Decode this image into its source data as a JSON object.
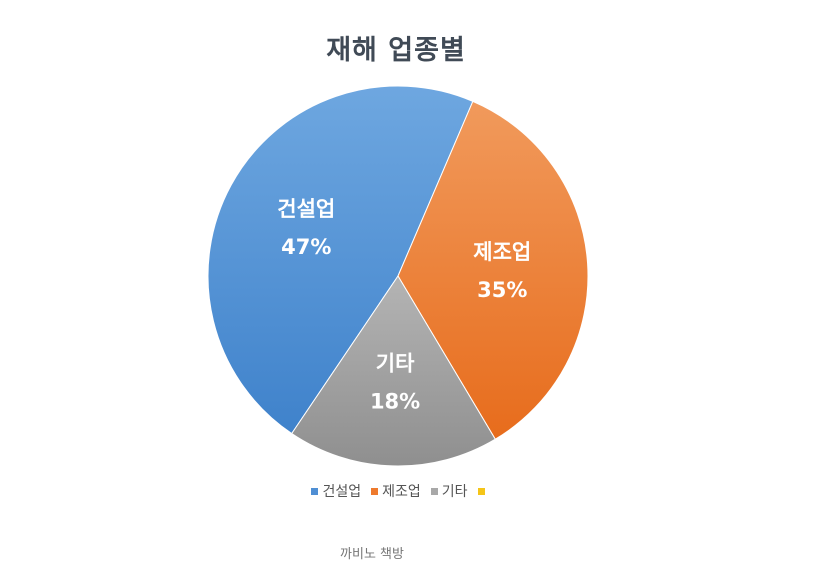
{
  "chart_data": {
    "type": "pie",
    "title": "재해 업종별",
    "categories": [
      "건설업",
      "제조업",
      "기타",
      ""
    ],
    "values": [
      47,
      35,
      18,
      0
    ],
    "value_labels": [
      "47%",
      "35%",
      "18%",
      ""
    ],
    "colors": [
      "#4f8fd4",
      "#ee7a2d",
      "#a8a8a8",
      "#f5c518"
    ],
    "legend_position": "bottom"
  },
  "footer": "까비노 책방"
}
